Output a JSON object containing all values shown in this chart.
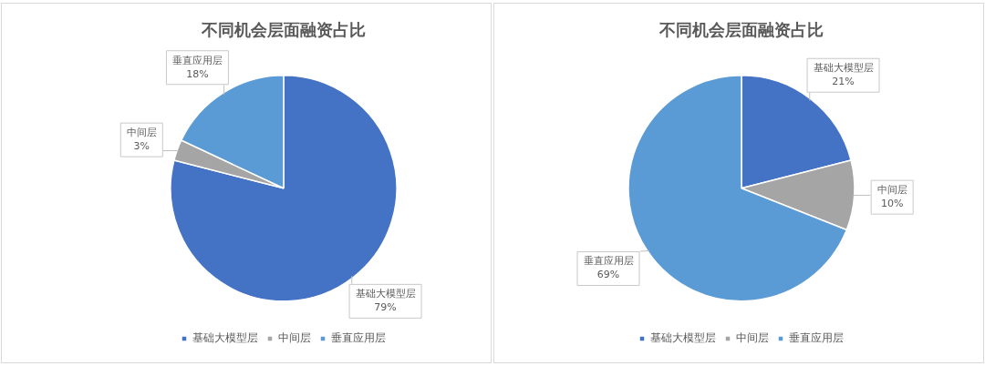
{
  "chart_data": [
    {
      "type": "pie",
      "title": "不同机会层面融资占比",
      "categories": [
        "基础大模型层",
        "中间层",
        "垂直应用层"
      ],
      "values": [
        79,
        3,
        18
      ],
      "colors": [
        "#4472c4",
        "#a5a5a5",
        "#5b9bd5"
      ],
      "value_labels": [
        "79%",
        "3%",
        "18%"
      ],
      "legend": "bottom"
    },
    {
      "type": "pie",
      "title": "不同机会层面融资占比",
      "categories": [
        "基础大模型层",
        "中间层",
        "垂直应用层"
      ],
      "values": [
        21,
        10,
        69
      ],
      "colors": [
        "#4472c4",
        "#a5a5a5",
        "#5b9bd5"
      ],
      "value_labels": [
        "21%",
        "10%",
        "69%"
      ],
      "legend": "bottom"
    }
  ]
}
